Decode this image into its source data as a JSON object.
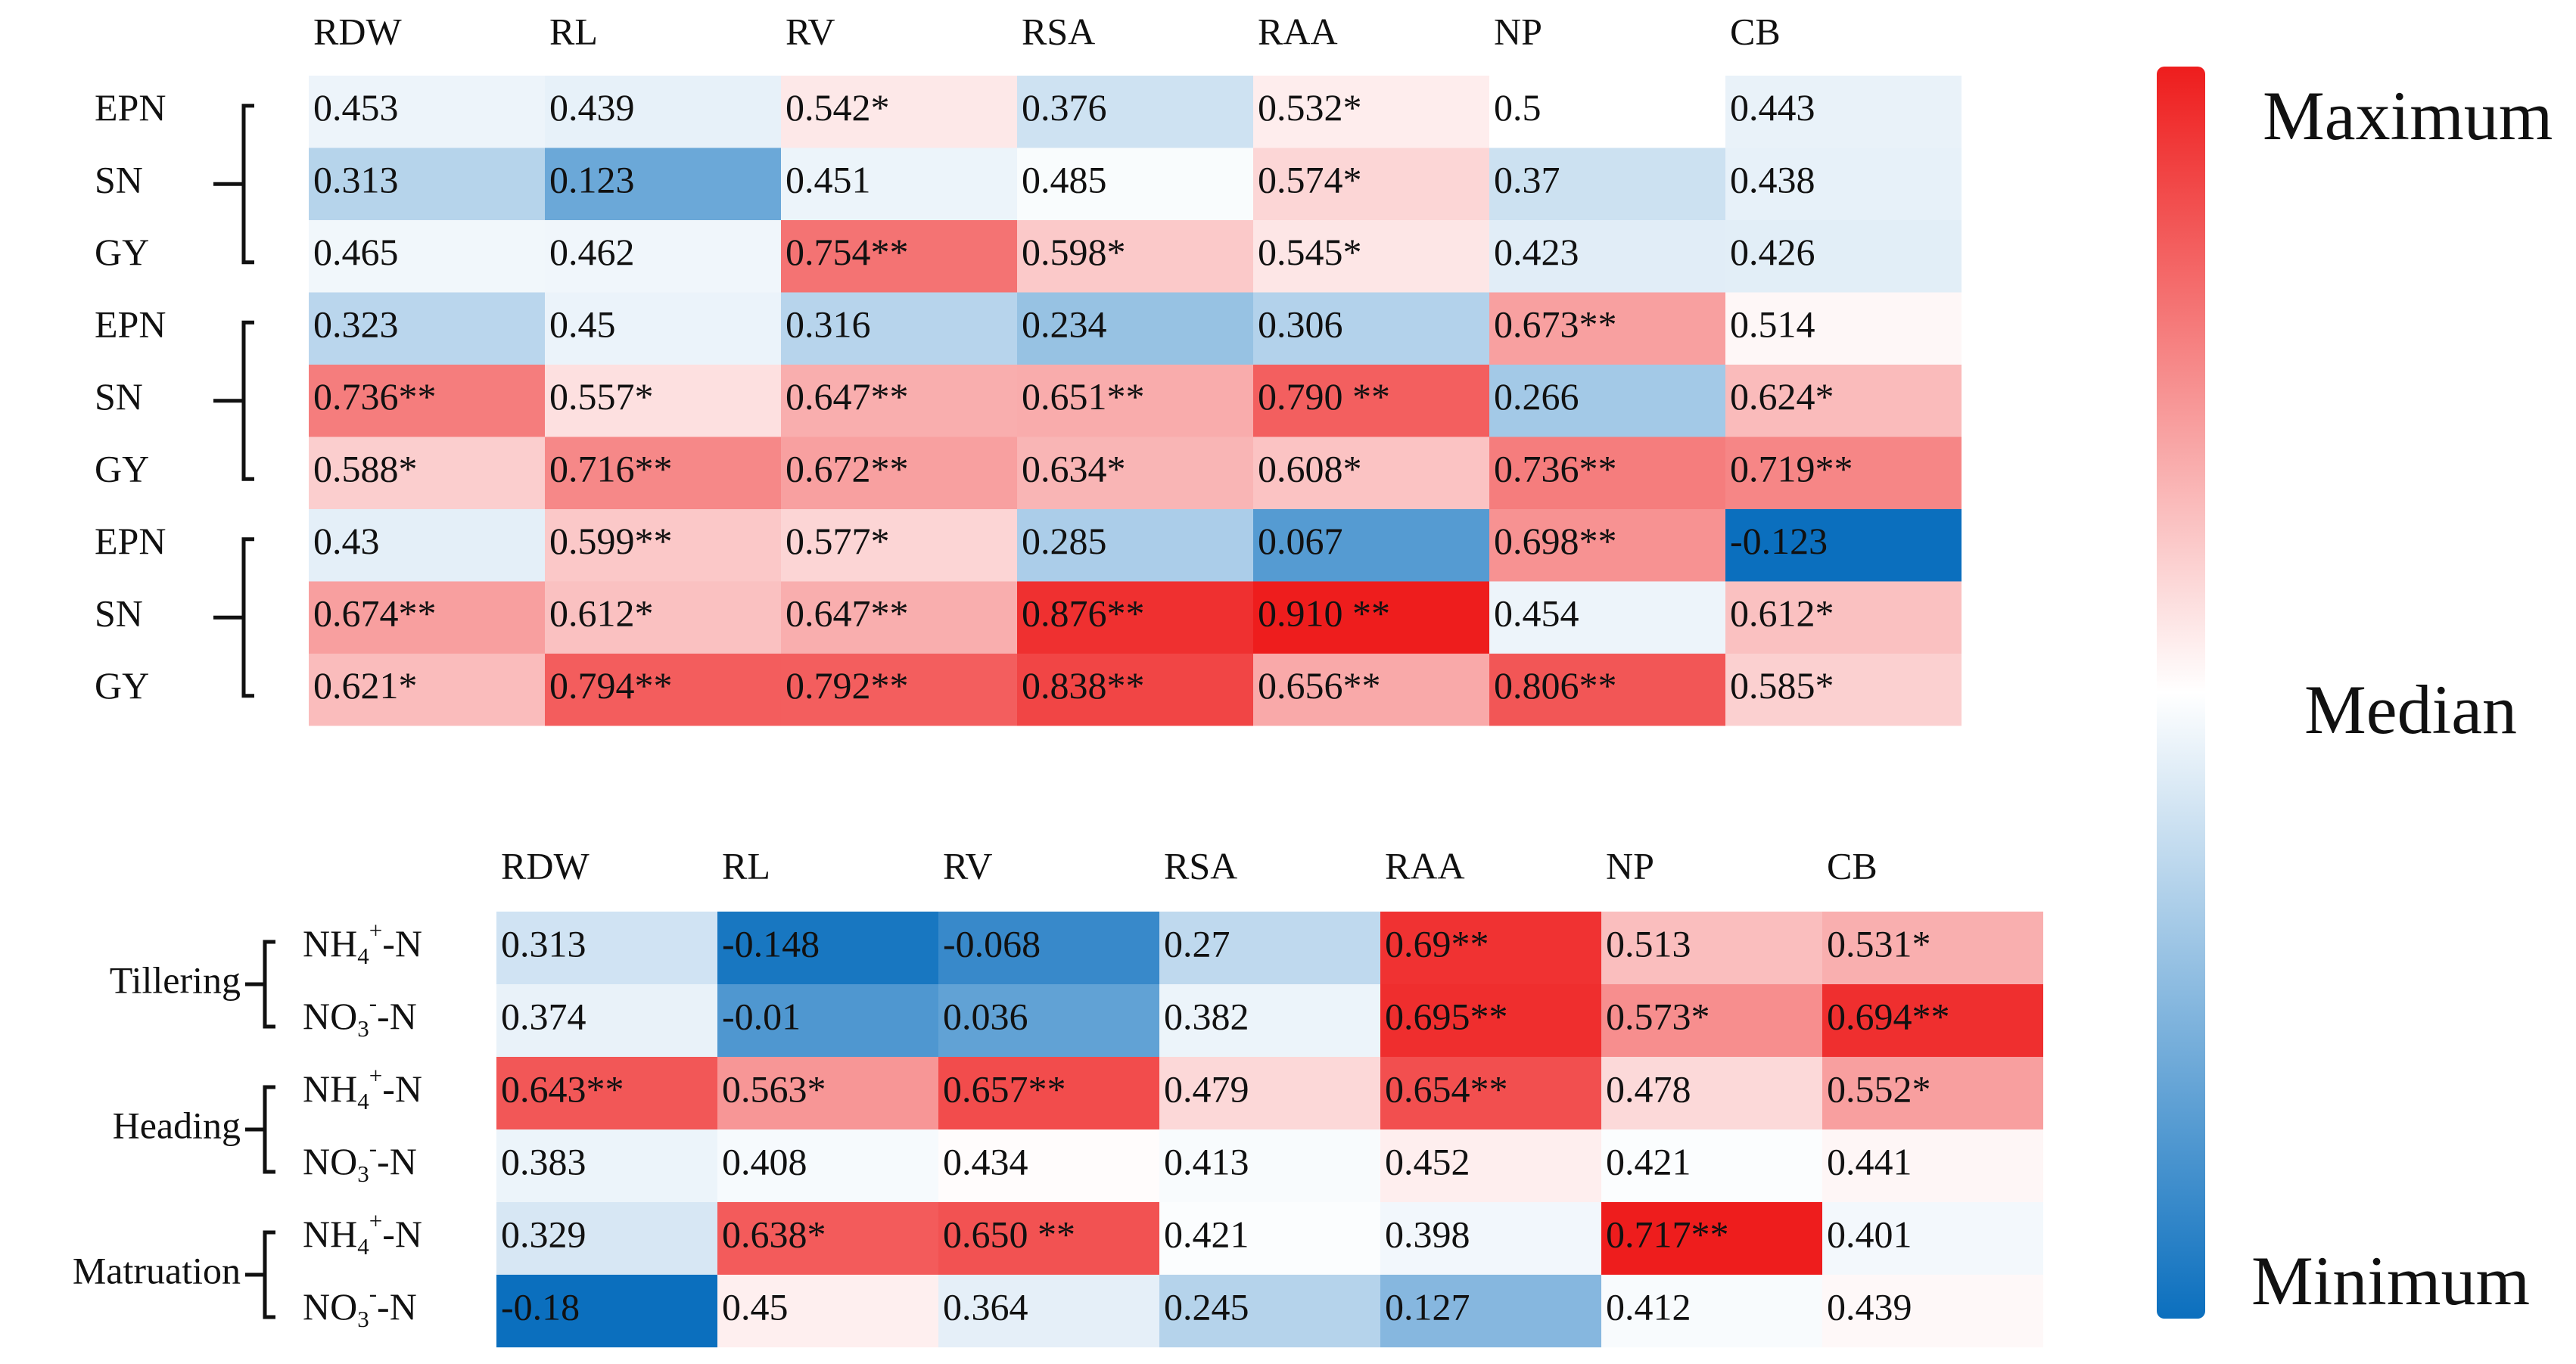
{
  "chart_data": [
    {
      "type": "heatmap",
      "columns": [
        "RDW",
        "RL",
        "RV",
        "RSA",
        "RAA",
        "NP",
        "CB"
      ],
      "groups": [
        {
          "label": "",
          "rows": [
            "EPN",
            "SN",
            "GY"
          ]
        },
        {
          "label": "",
          "rows": [
            "EPN",
            "SN",
            "GY"
          ]
        },
        {
          "label": "",
          "rows": [
            "EPN",
            "SN",
            "GY"
          ]
        }
      ],
      "values": [
        [
          0.453,
          0.439,
          0.542,
          0.376,
          0.532,
          0.5,
          0.443
        ],
        [
          0.313,
          0.123,
          0.451,
          0.485,
          0.574,
          0.37,
          0.438
        ],
        [
          0.465,
          0.462,
          0.754,
          0.598,
          0.545,
          0.423,
          0.426
        ],
        [
          0.323,
          0.45,
          0.316,
          0.234,
          0.306,
          0.673,
          0.514
        ],
        [
          0.736,
          0.557,
          0.647,
          0.651,
          0.79,
          0.266,
          0.624
        ],
        [
          0.588,
          0.716,
          0.672,
          0.634,
          0.608,
          0.736,
          0.719
        ],
        [
          0.43,
          0.599,
          0.577,
          0.285,
          0.067,
          0.698,
          -0.123
        ],
        [
          0.674,
          0.612,
          0.647,
          0.876,
          0.91,
          0.454,
          0.612
        ],
        [
          0.621,
          0.794,
          0.792,
          0.838,
          0.656,
          0.806,
          0.585
        ]
      ],
      "labels": [
        [
          "0.453",
          "0.439",
          "0.542*",
          "0.376",
          "0.532*",
          "0.5",
          "0.443"
        ],
        [
          "0.313",
          "0.123",
          "0.451",
          "0.485",
          "0.574*",
          "0.37",
          "0.438"
        ],
        [
          "0.465",
          "0.462",
          "0.754**",
          "0.598*",
          "0.545*",
          "0.423",
          "0.426"
        ],
        [
          "0.323",
          "0.45",
          "0.316",
          "0.234",
          "0.306",
          "0.673**",
          "0.514"
        ],
        [
          "0.736**",
          "0.557*",
          "0.647**",
          "0.651**",
          "0.790 **",
          "0.266",
          "0.624*"
        ],
        [
          "0.588*",
          "0.716**",
          "0.672**",
          "0.634*",
          "0.608*",
          "0.736**",
          "0.719**"
        ],
        [
          "0.43",
          "0.599**",
          "0.577*",
          "0.285",
          "0.067",
          "0.698**",
          "-0.123"
        ],
        [
          "0.674**",
          "0.612*",
          "0.647**",
          "0.876**",
          "0.910 **",
          "0.454",
          "0.612*"
        ],
        [
          "0.621*",
          "0.794**",
          "0.792**",
          "0.838**",
          "0.656**",
          "0.806**",
          "0.585*"
        ]
      ],
      "color_scale": {
        "min": -0.123,
        "median": 0.5,
        "max": 0.91
      }
    },
    {
      "type": "heatmap",
      "columns": [
        "RDW",
        "RL",
        "RV",
        "RSA",
        "RAA",
        "NP",
        "CB"
      ],
      "groups": [
        {
          "label": "Tillering",
          "rows": [
            "NH4+-N",
            "NO3--N"
          ]
        },
        {
          "label": "Heading",
          "rows": [
            "NH4+-N",
            "NO3--N"
          ]
        },
        {
          "label": "Matruation",
          "rows": [
            "NH4+-N",
            "NO3--N"
          ]
        }
      ],
      "values": [
        [
          0.313,
          -0.148,
          -0.068,
          0.27,
          0.69,
          0.513,
          0.531
        ],
        [
          0.374,
          -0.01,
          0.036,
          0.382,
          0.695,
          0.573,
          0.694
        ],
        [
          0.643,
          0.563,
          0.657,
          0.479,
          0.654,
          0.478,
          0.552
        ],
        [
          0.383,
          0.408,
          0.434,
          0.413,
          0.452,
          0.421,
          0.441
        ],
        [
          0.329,
          0.638,
          0.65,
          0.421,
          0.398,
          0.717,
          0.401
        ],
        [
          -0.18,
          0.45,
          0.364,
          0.245,
          0.127,
          0.412,
          0.439
        ]
      ],
      "labels": [
        [
          "0.313",
          "-0.148",
          "-0.068",
          "0.27",
          "0.69**",
          "0.513",
          "0.531*"
        ],
        [
          "0.374",
          "-0.01",
          "0.036",
          "0.382",
          "0.695**",
          "0.573*",
          "0.694**"
        ],
        [
          "0.643**",
          "0.563*",
          "0.657**",
          "0.479",
          "0.654**",
          "0.478",
          "0.552*"
        ],
        [
          "0.383",
          "0.408",
          "0.434",
          "0.413",
          "0.452",
          "0.421",
          "0.441"
        ],
        [
          "0.329",
          "0.638*",
          "0.650 **",
          "0.421",
          "0.398",
          "0.717**",
          "0.401"
        ],
        [
          "-0.18",
          "0.45",
          "0.364",
          "0.245",
          "0.127",
          "0.412",
          "0.439"
        ]
      ],
      "color_scale": {
        "min": -0.18,
        "median": 0.43,
        "max": 0.717
      }
    }
  ],
  "legend": {
    "max_label": "Maximum",
    "median_label": "Median",
    "min_label": "Minimum",
    "colors": {
      "max": "#ee1d1d",
      "median": "#ffffff",
      "min": "#0b6fbe"
    }
  }
}
